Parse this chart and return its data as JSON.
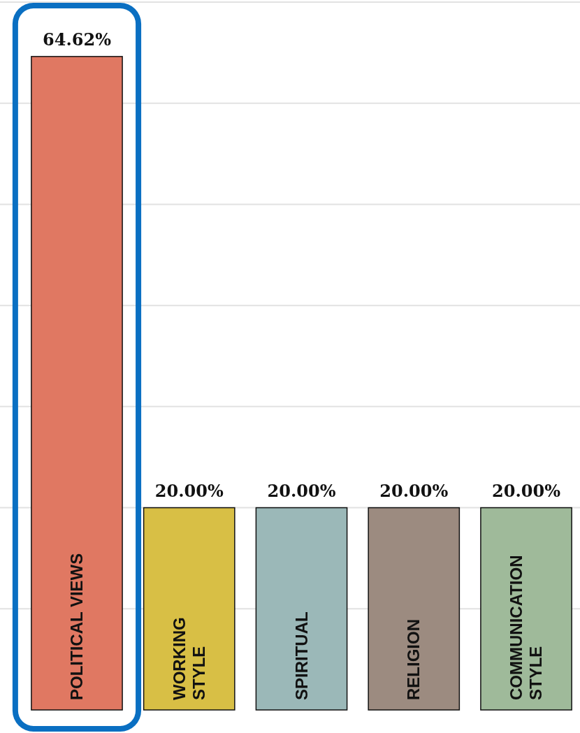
{
  "chart_data": {
    "type": "bar",
    "categories": [
      "POLITICAL VIEWS",
      "WORKING\nSTYLE",
      "SPIRITUAL",
      "RELIGION",
      "COMMUNICATION\nSTYLE"
    ],
    "values": [
      64.62,
      20,
      20,
      20,
      20
    ],
    "value_labels": [
      "64.62%",
      "20.00%",
      "20.00%",
      "20.00%",
      "20.00%"
    ],
    "colors": [
      "#e07862",
      "#d8bf45",
      "#9bb8b8",
      "#9c8b80",
      "#9fba9a"
    ],
    "ylim": [
      0,
      70
    ],
    "yticks": [
      {
        "value": 10,
        "label": null
      },
      {
        "value": 20,
        "label": null
      },
      {
        "value": 30,
        "label": null
      },
      {
        "value": 40,
        "label": null
      },
      {
        "value": 50,
        "label": null
      },
      {
        "value": 60,
        "label": null
      },
      {
        "value": 70,
        "label": null
      }
    ],
    "grid": "y",
    "bands": [
      {
        "axis": "x",
        "from": "POLITICAL VIEWS",
        "to": "POLITICAL VIEWS",
        "color": "#0a6fc2"
      }
    ]
  }
}
